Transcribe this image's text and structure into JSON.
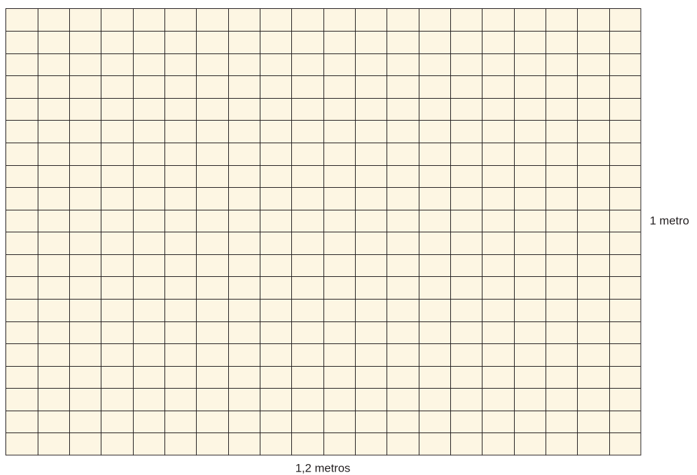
{
  "labels": {
    "height": "1 metro",
    "width": "1,2 metros"
  }
}
